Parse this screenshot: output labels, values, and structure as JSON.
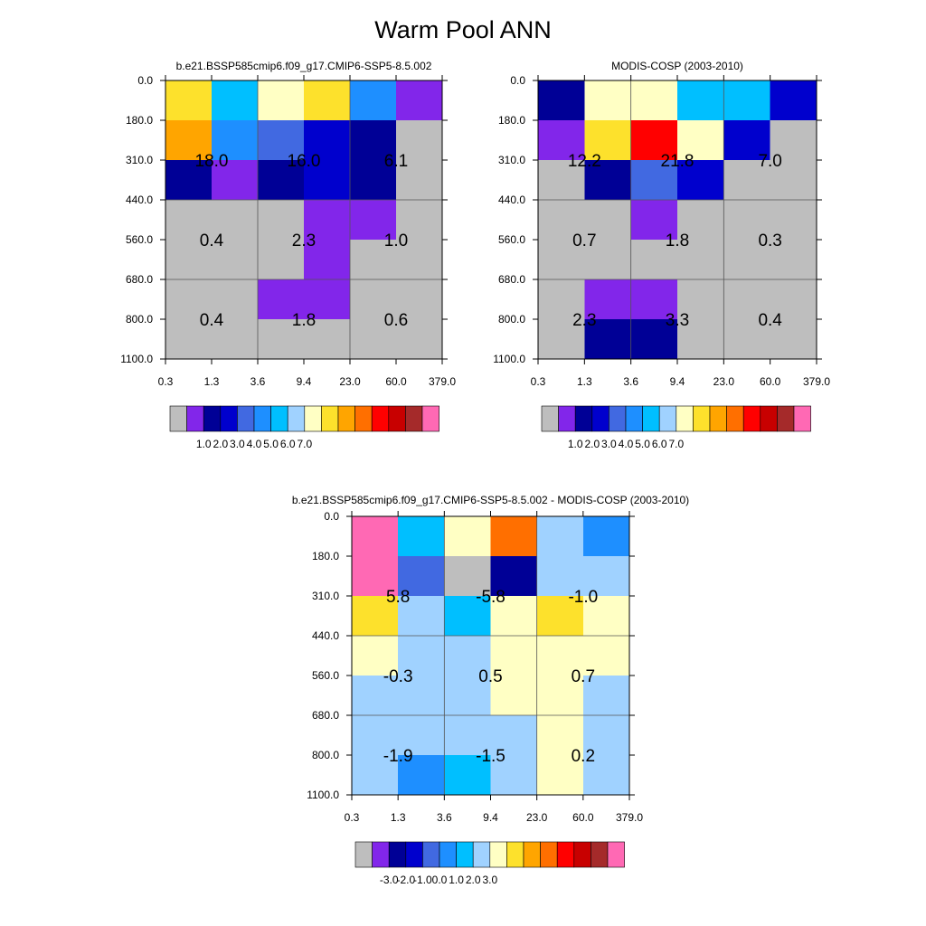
{
  "title": "Warm Pool ANN",
  "colors": {
    "missing": "#bebebe",
    "border": "#000000",
    "grid": "#555555"
  },
  "chart_data": [
    {
      "type": "heatmap",
      "title": "b.e21.BSSP585cmip6.f09_g17.CMIP6-SSP5-8.5.002",
      "x_ticks": [
        "0.3",
        "1.3",
        "3.6",
        "9.4",
        "23.0",
        "60.0",
        "379.0"
      ],
      "y_ticks": [
        "0.0",
        "180.0",
        "310.0",
        "440.0",
        "560.0",
        "680.0",
        "800.0",
        "1100.0"
      ],
      "cells": [
        [
          "#fde12c",
          "#00bfff",
          "#ffffc4",
          "#fde12c",
          "#1e8fff",
          "#8226ea"
        ],
        [
          "#ffa500",
          "#1e8fff",
          "#4169e1",
          "#0000cd",
          "#000096",
          "#bebebe"
        ],
        [
          "#000096",
          "#8226ea",
          "#000096",
          "#0000cd",
          "#000096",
          "#bebebe"
        ],
        [
          "#bebebe",
          "#bebebe",
          "#bebebe",
          "#8226ea",
          "#8226ea",
          "#bebebe"
        ],
        [
          "#bebebe",
          "#bebebe",
          "#bebebe",
          "#8226ea",
          "#bebebe",
          "#bebebe"
        ],
        [
          "#bebebe",
          "#bebebe",
          "#8226ea",
          "#8226ea",
          "#bebebe",
          "#bebebe"
        ],
        [
          "#bebebe",
          "#bebebe",
          "#bebebe",
          "#bebebe",
          "#bebebe",
          "#bebebe"
        ]
      ],
      "block_values": [
        [
          "18.0",
          "16.0",
          "6.1"
        ],
        [
          "0.4",
          "2.3",
          "1.0"
        ],
        [
          "0.4",
          "1.8",
          "0.6"
        ]
      ],
      "colorbar": {
        "colors": [
          "#bebebe",
          "#8226ea",
          "#000096",
          "#0000cd",
          "#4169e1",
          "#1e8fff",
          "#00bfff",
          "#a0d2ff",
          "#ffffc4",
          "#fde12c",
          "#ffa500",
          "#ff6f00",
          "#ff0000",
          "#c80000",
          "#a52a2a",
          "#ff69b4"
        ],
        "labels": [
          "1.0",
          "2.0",
          "3.0",
          "4.0",
          "5.0",
          "6.0",
          "7.0"
        ]
      }
    },
    {
      "type": "heatmap",
      "title": "MODIS-COSP (2003-2010)",
      "x_ticks": [
        "0.3",
        "1.3",
        "3.6",
        "9.4",
        "23.0",
        "60.0",
        "379.0"
      ],
      "y_ticks": [
        "0.0",
        "180.0",
        "310.0",
        "440.0",
        "560.0",
        "680.0",
        "800.0",
        "1100.0"
      ],
      "cells": [
        [
          "#000096",
          "#ffffc4",
          "#ffffc4",
          "#00bfff",
          "#00bfff",
          "#0000cd"
        ],
        [
          "#8226ea",
          "#fde12c",
          "#ff0000",
          "#ffffc4",
          "#0000cd",
          "#bebebe"
        ],
        [
          "#bebebe",
          "#000096",
          "#4169e1",
          "#0000cd",
          "#bebebe",
          "#bebebe"
        ],
        [
          "#bebebe",
          "#bebebe",
          "#8226ea",
          "#bebebe",
          "#bebebe",
          "#bebebe"
        ],
        [
          "#bebebe",
          "#bebebe",
          "#bebebe",
          "#bebebe",
          "#bebebe",
          "#bebebe"
        ],
        [
          "#bebebe",
          "#8226ea",
          "#8226ea",
          "#bebebe",
          "#bebebe",
          "#bebebe"
        ],
        [
          "#bebebe",
          "#000096",
          "#000096",
          "#bebebe",
          "#bebebe",
          "#bebebe"
        ]
      ],
      "block_values": [
        [
          "12.2",
          "21.8",
          "7.0"
        ],
        [
          "0.7",
          "1.8",
          "0.3"
        ],
        [
          "2.3",
          "3.3",
          "0.4"
        ]
      ],
      "colorbar": {
        "colors": [
          "#bebebe",
          "#8226ea",
          "#000096",
          "#0000cd",
          "#4169e1",
          "#1e8fff",
          "#00bfff",
          "#a0d2ff",
          "#ffffc4",
          "#fde12c",
          "#ffa500",
          "#ff6f00",
          "#ff0000",
          "#c80000",
          "#a52a2a",
          "#ff69b4"
        ],
        "labels": [
          "1.0",
          "2.0",
          "3.0",
          "4.0",
          "5.0",
          "6.0",
          "7.0"
        ]
      }
    },
    {
      "type": "heatmap",
      "title": "b.e21.BSSP585cmip6.f09_g17.CMIP6-SSP5-8.5.002 - MODIS-COSP (2003-2010)",
      "x_ticks": [
        "0.3",
        "1.3",
        "3.6",
        "9.4",
        "23.0",
        "60.0",
        "379.0"
      ],
      "y_ticks": [
        "0.0",
        "180.0",
        "310.0",
        "440.0",
        "560.0",
        "680.0",
        "800.0",
        "1100.0"
      ],
      "cells": [
        [
          "#ff69b4",
          "#00bfff",
          "#ffffc4",
          "#ff6f00",
          "#a0d2ff",
          "#1e8fff"
        ],
        [
          "#ff69b4",
          "#4169e1",
          "#bebebe",
          "#000096",
          "#a0d2ff",
          "#a0d2ff"
        ],
        [
          "#fde12c",
          "#a0d2ff",
          "#00bfff",
          "#ffffc4",
          "#fde12c",
          "#ffffc4"
        ],
        [
          "#ffffc4",
          "#a0d2ff",
          "#a0d2ff",
          "#ffffc4",
          "#ffffc4",
          "#ffffc4"
        ],
        [
          "#a0d2ff",
          "#a0d2ff",
          "#a0d2ff",
          "#ffffc4",
          "#ffffc4",
          "#a0d2ff"
        ],
        [
          "#a0d2ff",
          "#a0d2ff",
          "#a0d2ff",
          "#a0d2ff",
          "#ffffc4",
          "#a0d2ff"
        ],
        [
          "#a0d2ff",
          "#1e8fff",
          "#00bfff",
          "#a0d2ff",
          "#ffffc4",
          "#a0d2ff"
        ]
      ],
      "block_values": [
        [
          "5.8",
          "-5.8",
          "-1.0"
        ],
        [
          "-0.3",
          "0.5",
          "0.7"
        ],
        [
          "-1.9",
          "-1.5",
          "0.2"
        ]
      ],
      "colorbar": {
        "colors": [
          "#bebebe",
          "#8226ea",
          "#000096",
          "#0000cd",
          "#4169e1",
          "#1e8fff",
          "#00bfff",
          "#a0d2ff",
          "#ffffc4",
          "#fde12c",
          "#ffa500",
          "#ff6f00",
          "#ff0000",
          "#c80000",
          "#a52a2a",
          "#ff69b4"
        ],
        "labels": [
          "-3.0",
          "-2.0",
          "-1.0",
          "0.0",
          "1.0",
          "2.0",
          "3.0"
        ]
      }
    }
  ]
}
